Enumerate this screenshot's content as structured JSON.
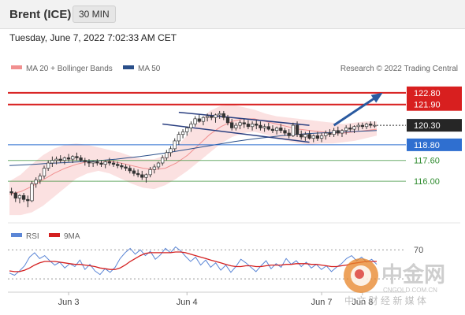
{
  "header": {
    "instrument": "Brent (ICE)",
    "timeframe": "30 MIN"
  },
  "timestamp": "Tuesday, June 7, 2022 7:02:33 AM CET",
  "legend": {
    "items": [
      {
        "label": "MA 20 + Bollinger Bands",
        "color": "#f19090"
      },
      {
        "label": "MA 50",
        "color": "#2a4f8a"
      }
    ],
    "credit": "Research © 2022 Trading Central"
  },
  "rsi_legend": {
    "items": [
      {
        "label": "RSI",
        "color": "#5b86d6"
      },
      {
        "label": "9MA",
        "color": "#d42020"
      }
    ]
  },
  "watermark": {
    "brand": "中金网",
    "url": "CNGOLD.COM.CN",
    "tagline": "中 文 财 经 新 媒 体"
  },
  "chart_data": [
    {
      "type": "candlestick",
      "x_tick_labels": [
        "Jun 3",
        "Jun 4",
        "Jun 7",
        "Jun 8"
      ],
      "ylim": [
        112.8,
        124.0
      ],
      "current_price": 120.3,
      "levels": [
        {
          "value": 122.8,
          "label": "122.80",
          "role": "resistance",
          "color": "#d81f1f"
        },
        {
          "value": 121.9,
          "label": "121.90",
          "role": "resistance",
          "color": "#d81f1f"
        },
        {
          "value": 118.8,
          "label": "118.80",
          "role": "pivot",
          "color": "#2f6fd0"
        },
        {
          "value": 117.6,
          "label": "117.60",
          "role": "support",
          "color": "#2e8b2e"
        },
        {
          "value": 116.0,
          "label": "116.00",
          "role": "support",
          "color": "#2e8b2e"
        }
      ],
      "candles": [
        [
          115.2,
          115.5,
          114.9,
          115.1
        ],
        [
          115.1,
          115.2,
          114.4,
          114.7
        ],
        [
          114.7,
          115.0,
          114.3,
          114.9
        ],
        [
          114.9,
          115.1,
          114.4,
          114.6
        ],
        [
          114.6,
          114.9,
          114.0,
          114.5
        ],
        [
          114.5,
          116.0,
          114.4,
          115.8
        ],
        [
          115.8,
          116.3,
          115.5,
          116.1
        ],
        [
          116.1,
          116.6,
          115.8,
          116.4
        ],
        [
          116.4,
          117.2,
          116.2,
          117.0
        ],
        [
          117.0,
          117.6,
          116.8,
          117.4
        ],
        [
          117.4,
          117.9,
          117.1,
          117.6
        ],
        [
          117.6,
          117.9,
          117.3,
          117.7
        ],
        [
          117.7,
          118.0,
          117.4,
          117.6
        ],
        [
          117.6,
          117.9,
          117.3,
          117.8
        ],
        [
          117.8,
          118.1,
          117.5,
          117.7
        ],
        [
          117.7,
          118.0,
          117.4,
          117.9
        ],
        [
          117.9,
          118.2,
          117.6,
          117.8
        ],
        [
          117.8,
          118.0,
          117.5,
          117.6
        ],
        [
          117.6,
          117.8,
          117.2,
          117.5
        ],
        [
          117.5,
          117.7,
          117.1,
          117.4
        ],
        [
          117.4,
          117.6,
          117.1,
          117.5
        ],
        [
          117.5,
          117.7,
          117.2,
          117.4
        ],
        [
          117.4,
          117.6,
          117.1,
          117.3
        ],
        [
          117.3,
          117.6,
          117.0,
          117.5
        ],
        [
          117.5,
          117.8,
          117.2,
          117.4
        ],
        [
          117.4,
          117.6,
          117.1,
          117.3
        ],
        [
          117.3,
          117.5,
          117.0,
          117.2
        ],
        [
          117.2,
          117.4,
          116.9,
          117.1
        ],
        [
          117.1,
          117.3,
          116.8,
          117.0
        ],
        [
          117.0,
          117.2,
          116.6,
          116.8
        ],
        [
          116.8,
          117.0,
          116.4,
          116.6
        ],
        [
          116.6,
          116.9,
          116.3,
          116.5
        ],
        [
          116.5,
          116.8,
          116.1,
          116.3
        ],
        [
          116.3,
          116.6,
          115.9,
          116.5
        ],
        [
          116.5,
          117.1,
          116.3,
          116.9
        ],
        [
          116.9,
          117.3,
          116.6,
          117.1
        ],
        [
          117.1,
          117.5,
          116.9,
          117.4
        ],
        [
          117.4,
          118.0,
          117.2,
          117.8
        ],
        [
          117.8,
          118.4,
          117.6,
          118.2
        ],
        [
          118.2,
          118.7,
          117.9,
          118.5
        ],
        [
          118.5,
          119.3,
          118.3,
          119.1
        ],
        [
          119.1,
          119.8,
          118.8,
          119.6
        ],
        [
          119.6,
          120.0,
          119.3,
          119.8
        ],
        [
          119.8,
          120.2,
          119.5,
          120.1
        ],
        [
          120.1,
          120.6,
          119.8,
          120.4
        ],
        [
          120.4,
          121.0,
          120.2,
          120.8
        ],
        [
          120.8,
          121.1,
          120.5,
          120.6
        ],
        [
          120.6,
          121.0,
          120.3,
          120.9
        ],
        [
          120.9,
          121.2,
          120.6,
          121.0
        ],
        [
          121.0,
          121.3,
          120.7,
          120.9
        ],
        [
          120.9,
          121.2,
          120.5,
          121.1
        ],
        [
          121.1,
          121.4,
          120.8,
          121.2
        ],
        [
          121.2,
          121.4,
          120.7,
          120.9
        ],
        [
          120.9,
          121.1,
          120.3,
          120.5
        ],
        [
          120.5,
          120.8,
          119.9,
          120.1
        ],
        [
          120.1,
          120.5,
          119.9,
          120.3
        ],
        [
          120.3,
          120.7,
          120.0,
          120.5
        ],
        [
          120.5,
          120.8,
          120.1,
          120.4
        ],
        [
          120.4,
          120.7,
          120.0,
          120.2
        ],
        [
          120.2,
          120.6,
          119.9,
          120.4
        ],
        [
          120.4,
          120.7,
          120.0,
          120.3
        ],
        [
          120.3,
          120.6,
          119.9,
          120.1
        ],
        [
          120.1,
          120.4,
          119.8,
          120.2
        ],
        [
          120.2,
          120.5,
          119.9,
          120.0
        ],
        [
          120.0,
          120.3,
          119.7,
          119.9
        ],
        [
          119.9,
          120.2,
          119.6,
          120.1
        ],
        [
          120.1,
          120.4,
          119.7,
          119.9
        ],
        [
          119.9,
          120.1,
          119.5,
          119.7
        ],
        [
          119.7,
          120.0,
          119.3,
          119.5
        ],
        [
          119.5,
          120.5,
          119.4,
          120.3
        ],
        [
          120.3,
          120.6,
          119.4,
          119.6
        ],
        [
          119.6,
          119.9,
          119.2,
          119.4
        ],
        [
          119.4,
          119.8,
          119.1,
          119.6
        ],
        [
          119.6,
          119.9,
          119.2,
          119.3
        ],
        [
          119.3,
          119.6,
          119.0,
          119.5
        ],
        [
          119.5,
          119.8,
          119.1,
          119.3
        ],
        [
          119.3,
          119.7,
          119.0,
          119.5
        ],
        [
          119.5,
          119.9,
          119.2,
          119.7
        ],
        [
          119.7,
          120.0,
          119.4,
          119.6
        ],
        [
          119.6,
          120.1,
          119.4,
          119.9
        ],
        [
          119.9,
          120.2,
          119.5,
          119.7
        ],
        [
          119.7,
          120.0,
          119.4,
          119.9
        ],
        [
          119.9,
          120.3,
          119.6,
          120.1
        ],
        [
          120.1,
          120.4,
          119.8,
          120.0
        ],
        [
          120.0,
          120.3,
          119.7,
          120.2
        ],
        [
          120.2,
          120.5,
          119.9,
          120.3
        ],
        [
          120.3,
          120.5,
          120.0,
          120.2
        ],
        [
          120.2,
          120.5,
          120.0,
          120.4
        ],
        [
          120.4,
          120.6,
          120.1,
          120.3
        ],
        [
          120.3,
          120.6,
          120.1,
          120.3
        ]
      ],
      "tick_index": [
        14,
        43,
        76,
        86
      ],
      "ma50": [
        117.2,
        117.25,
        117.3,
        117.35,
        117.4,
        117.45,
        117.5,
        117.55,
        117.62,
        117.7,
        117.8,
        117.9,
        118.02,
        118.15,
        118.3,
        118.45,
        118.6,
        118.75,
        118.9,
        119.05,
        119.18,
        119.3,
        119.4,
        119.5,
        119.58,
        119.65,
        119.7,
        119.74,
        119.78,
        119.82,
        119.86,
        119.9
      ],
      "ma20": [
        115.0,
        115.2,
        115.6,
        116.1,
        116.6,
        117.0,
        117.3,
        117.5,
        117.6,
        117.55,
        117.4,
        117.2,
        117.0,
        116.9,
        117.0,
        117.4,
        118.0,
        118.8,
        119.6,
        120.2,
        120.6,
        120.8,
        120.8,
        120.6,
        120.4,
        120.2,
        120.0,
        119.9,
        119.8,
        119.7,
        119.7,
        119.8,
        119.9,
        120.0
      ],
      "bb_upper": [
        116.0,
        116.5,
        117.3,
        118.0,
        118.5,
        118.8,
        118.9,
        118.8,
        118.6,
        118.4,
        118.2,
        117.9,
        117.7,
        117.7,
        118.0,
        118.6,
        119.6,
        120.6,
        121.4,
        121.8,
        121.9,
        121.7,
        121.5,
        121.2,
        121.0,
        120.9,
        120.8,
        120.7,
        120.6,
        120.5,
        120.4,
        120.5,
        120.6,
        120.6
      ],
      "bb_lower": [
        113.4,
        113.4,
        113.6,
        114.1,
        114.8,
        115.5,
        116.2,
        116.6,
        116.8,
        116.6,
        116.2,
        115.8,
        115.5,
        115.4,
        115.7,
        116.2,
        116.8,
        117.5,
        118.2,
        118.9,
        119.4,
        119.7,
        119.8,
        119.6,
        119.3,
        119.1,
        118.9,
        118.8,
        118.9,
        118.9,
        119.0,
        119.1,
        119.3,
        119.5
      ],
      "channel": {
        "upper": [
          [
            41,
            121.3
          ],
          [
            73,
            120.3
          ]
        ],
        "lower": [
          [
            37,
            120.4
          ],
          [
            73,
            119.0
          ]
        ]
      },
      "projection": {
        "from": [
          79,
          120.3
        ],
        "to": [
          90,
          122.6
        ]
      }
    },
    {
      "type": "line",
      "series": [
        {
          "name": "RSI",
          "values": [
            38,
            35,
            41,
            48,
            60,
            66,
            58,
            62,
            55,
            49,
            53,
            45,
            51,
            47,
            56,
            43,
            50,
            41,
            36,
            44,
            39,
            46,
            58,
            66,
            72,
            64,
            70,
            62,
            68,
            57,
            63,
            72,
            66,
            74,
            69,
            61,
            54,
            60,
            49,
            56,
            46,
            52,
            42,
            49,
            39,
            47,
            57,
            52,
            46,
            40,
            48,
            55,
            44,
            51,
            46,
            58,
            50,
            55,
            47,
            53,
            45,
            50,
            43,
            48,
            40,
            46,
            51,
            58,
            62,
            55,
            60,
            53,
            57,
            50
          ]
        },
        {
          "name": "9MA",
          "values": [
            41,
            40,
            40,
            42,
            45,
            49,
            52,
            54,
            54,
            54,
            53,
            52,
            51,
            50,
            50,
            49,
            48,
            47,
            45,
            44,
            43,
            43,
            45,
            49,
            54,
            58,
            62,
            65,
            66,
            66,
            66,
            66,
            66,
            67,
            67,
            66,
            64,
            62,
            60,
            58,
            56,
            54,
            52,
            50,
            48,
            47,
            47,
            48,
            48,
            47,
            47,
            48,
            49,
            49,
            49,
            50,
            50,
            51,
            51,
            51,
            50,
            50,
            49,
            48,
            47,
            47,
            48,
            49,
            51,
            52,
            53,
            54,
            54,
            54
          ]
        }
      ],
      "reference_lines": [
        70,
        30
      ],
      "tick_labels": [
        "70"
      ],
      "ylim": [
        15,
        80
      ]
    }
  ]
}
